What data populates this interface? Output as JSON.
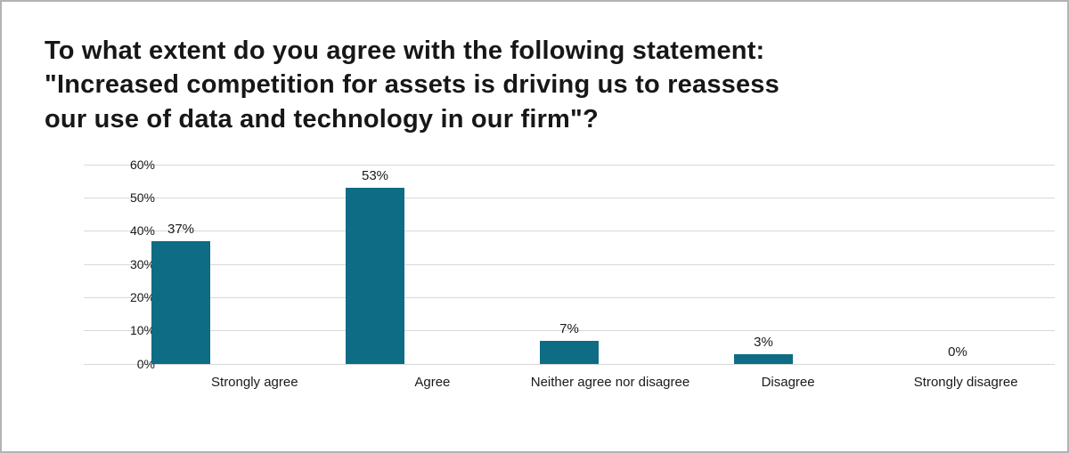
{
  "chart_data": {
    "type": "bar",
    "title": "To what extent do you agree with the following statement:\n\"Increased competition  for assets is driving us to reassess\nour use of data and technology in our firm\"?",
    "categories": [
      "Strongly agree",
      "Agree",
      "Neither agree nor disagree",
      "Disagree",
      "Strongly disagree"
    ],
    "values": [
      37,
      53,
      7,
      3,
      0
    ],
    "value_labels": [
      "37%",
      "53%",
      "7%",
      "3%",
      "0%"
    ],
    "xlabel": "",
    "ylabel": "",
    "ylim": [
      0,
      60
    ],
    "ytick_step": 10,
    "ytick_labels": [
      "0%",
      "10%",
      "20%",
      "30%",
      "40%",
      "50%",
      "60%"
    ],
    "bar_color": "#0e6c84",
    "gridline_color": "#d9d9d9",
    "grid": "horizontal",
    "legend_position": "none"
  }
}
